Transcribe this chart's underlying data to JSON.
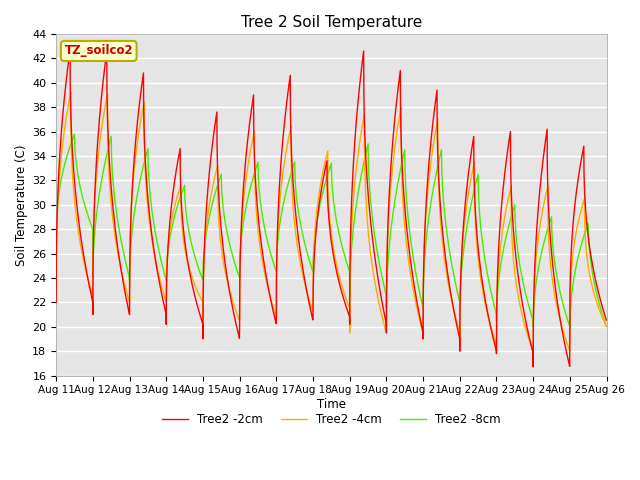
{
  "title": "Tree 2 Soil Temperature",
  "xlabel": "Time",
  "ylabel": "Soil Temperature (C)",
  "ylim": [
    16,
    44
  ],
  "n_days": 15,
  "xtick_labels": [
    "Aug 11",
    "Aug 12",
    "Aug 13",
    "Aug 14",
    "Aug 15",
    "Aug 16",
    "Aug 17",
    "Aug 18",
    "Aug 19",
    "Aug 20",
    "Aug 21",
    "Aug 22",
    "Aug 23",
    "Aug 24",
    "Aug 25",
    "Aug 26"
  ],
  "annotation_text": "TZ_soilco2",
  "annotation_color": "#cc0000",
  "annotation_bg": "#ffffcc",
  "annotation_border": "#bbaa00",
  "bg_color": "#e5e5e5",
  "grid_color": "#ffffff",
  "legend_entries": [
    "Tree2 -2cm",
    "Tree2 -4cm",
    "Tree2 -8cm"
  ],
  "line_colors": [
    "#ff0000",
    "#ffaa00",
    "#44ee00"
  ],
  "line_width": 1.0,
  "day_data": [
    {
      "peak2": 42.7,
      "trough2": 22.0,
      "peak4": 39.2,
      "trough4": 22.5,
      "peak8": 35.8,
      "trough8": 28.0
    },
    {
      "peak2": 42.6,
      "trough2": 21.0,
      "peak4": 39.1,
      "trough4": 22.0,
      "peak8": 35.6,
      "trough8": 24.0
    },
    {
      "peak2": 40.8,
      "trough2": 21.0,
      "peak4": 38.4,
      "trough4": 22.0,
      "peak8": 34.6,
      "trough8": 23.8
    },
    {
      "peak2": 34.6,
      "trough2": 20.2,
      "peak4": 31.6,
      "trough4": 22.0,
      "peak8": 31.6,
      "trough8": 23.8
    },
    {
      "peak2": 37.6,
      "trough2": 19.0,
      "peak4": 33.2,
      "trough4": 20.5,
      "peak8": 32.5,
      "trough8": 24.0
    },
    {
      "peak2": 39.0,
      "trough2": 20.2,
      "peak4": 36.0,
      "trough4": 20.8,
      "peak8": 33.5,
      "trough8": 24.5
    },
    {
      "peak2": 40.6,
      "trough2": 20.5,
      "peak4": 36.4,
      "trough4": 21.2,
      "peak8": 33.5,
      "trough8": 24.5
    },
    {
      "peak2": 33.6,
      "trough2": 20.8,
      "peak4": 34.4,
      "trough4": 21.5,
      "peak8": 33.4,
      "trough8": 24.5
    },
    {
      "peak2": 42.6,
      "trough2": 20.2,
      "peak4": 37.4,
      "trough4": 19.5,
      "peak8": 35.0,
      "trough8": 22.5
    },
    {
      "peak2": 41.0,
      "trough2": 19.5,
      "peak4": 38.0,
      "trough4": 19.5,
      "peak8": 34.5,
      "trough8": 21.5
    },
    {
      "peak2": 39.4,
      "trough2": 19.0,
      "peak4": 37.0,
      "trough4": 19.5,
      "peak8": 34.5,
      "trough8": 22.0
    },
    {
      "peak2": 35.6,
      "trough2": 18.0,
      "peak4": 33.5,
      "trough4": 18.5,
      "peak8": 32.5,
      "trough8": 21.0
    },
    {
      "peak2": 36.0,
      "trough2": 17.8,
      "peak4": 31.5,
      "trough4": 18.0,
      "peak8": 30.0,
      "trough8": 20.5
    },
    {
      "peak2": 36.2,
      "trough2": 16.7,
      "peak4": 31.5,
      "trough4": 18.0,
      "peak8": 29.0,
      "trough8": 20.0
    },
    {
      "peak2": 34.8,
      "trough2": 20.5,
      "peak4": 30.5,
      "trough4": 20.0,
      "peak8": 28.5,
      "trough8": 20.0
    }
  ],
  "yticks": [
    16,
    18,
    20,
    22,
    24,
    26,
    28,
    30,
    32,
    34,
    36,
    38,
    40,
    42,
    44
  ],
  "figsize": [
    6.4,
    4.8
  ],
  "dpi": 100
}
